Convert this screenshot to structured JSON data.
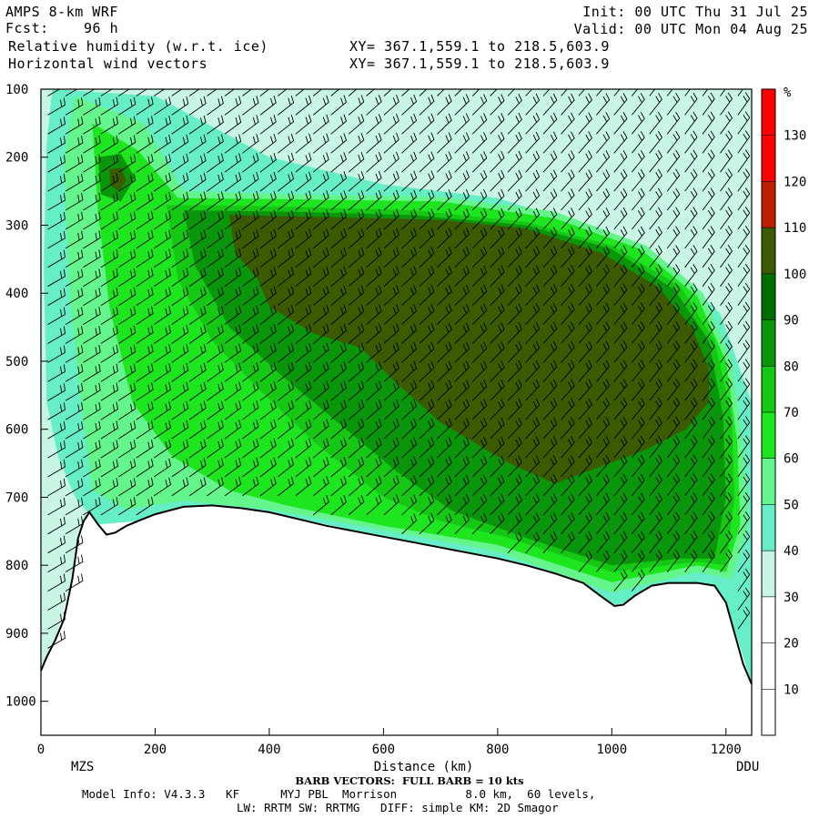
{
  "header": {
    "model": "AMPS 8-km WRF",
    "fcst_label": "Fcst:",
    "fcst_value": "96 h",
    "field": "Relative humidity (w.r.t. ice)",
    "vectors": "Horizontal wind vectors",
    "init": "Init: 00 UTC Thu 31 Jul 25",
    "valid": "Valid: 00 UTC Mon 04 Aug 25",
    "xy1": "XY= 367.1,559.1 to 218.5,603.9",
    "xy2": "XY= 367.1,559.1 to 218.5,603.9"
  },
  "footer": {
    "barb_note": "BARB VECTORS:  FULL BARB = 10 kts",
    "model_info": "Model Info: V4.3.3   KF      MYJ PBL  Morrison          8.0 km,  60 levels,",
    "model_info2": "LW: RRTM SW: RRTMG   DIFF: simple KM: 2D Smagor",
    "start_station": "MZS",
    "end_station": "DDU"
  },
  "chart_data": {
    "type": "heatmap",
    "xlabel": "Distance (km)",
    "ylabel": "",
    "x_ticks": [
      0,
      200,
      400,
      600,
      800,
      1000,
      1200
    ],
    "y_ticks": [
      100,
      200,
      300,
      400,
      500,
      600,
      700,
      800,
      900,
      1000
    ],
    "xlim": [
      0,
      1245
    ],
    "ylim": [
      1050,
      100
    ],
    "colorbar": {
      "unit": "%",
      "levels": [
        10,
        20,
        30,
        40,
        50,
        60,
        70,
        80,
        90,
        100,
        110,
        120,
        130
      ],
      "colors": [
        "#ffffff",
        "#ffffff",
        "#ffffff",
        "#c8f5e4",
        "#66eec6",
        "#64f58c",
        "#1ee61e",
        "#14c814",
        "#0a960a",
        "#006e00",
        "#3c5a00",
        "#be1e00",
        "#ff0000",
        "#ff0000"
      ]
    },
    "terrain_hPa": [
      [
        0,
        955
      ],
      [
        10,
        935
      ],
      [
        25,
        910
      ],
      [
        40,
        880
      ],
      [
        55,
        820
      ],
      [
        65,
        760
      ],
      [
        75,
        735
      ],
      [
        85,
        722
      ],
      [
        100,
        740
      ],
      [
        115,
        755
      ],
      [
        130,
        752
      ],
      [
        150,
        742
      ],
      [
        170,
        735
      ],
      [
        200,
        725
      ],
      [
        250,
        714
      ],
      [
        300,
        712
      ],
      [
        350,
        716
      ],
      [
        400,
        722
      ],
      [
        450,
        732
      ],
      [
        500,
        742
      ],
      [
        550,
        750
      ],
      [
        600,
        758
      ],
      [
        650,
        766
      ],
      [
        700,
        774
      ],
      [
        750,
        782
      ],
      [
        800,
        790
      ],
      [
        850,
        800
      ],
      [
        900,
        812
      ],
      [
        950,
        826
      ],
      [
        980,
        845
      ],
      [
        1005,
        860
      ],
      [
        1020,
        858
      ],
      [
        1040,
        845
      ],
      [
        1070,
        830
      ],
      [
        1100,
        826
      ],
      [
        1150,
        826
      ],
      [
        1180,
        830
      ],
      [
        1200,
        855
      ],
      [
        1215,
        900
      ],
      [
        1230,
        945
      ],
      [
        1245,
        975
      ]
    ],
    "rh_regions": [
      {
        "level": "30-40",
        "poly": [
          [
            0,
            100
          ],
          [
            1245,
            100
          ],
          [
            1245,
            975
          ],
          [
            1200,
            855
          ],
          [
            1150,
            826
          ],
          [
            1000,
            860
          ],
          [
            800,
            790
          ],
          [
            600,
            758
          ],
          [
            400,
            722
          ],
          [
            300,
            712
          ],
          [
            170,
            735
          ],
          [
            100,
            740
          ],
          [
            75,
            735
          ],
          [
            55,
            820
          ],
          [
            25,
            910
          ],
          [
            0,
            955
          ]
        ]
      },
      {
        "level": "40-50",
        "poly": [
          [
            20,
            100
          ],
          [
            200,
            110
          ],
          [
            400,
            200
          ],
          [
            600,
            240
          ],
          [
            800,
            260
          ],
          [
            950,
            300
          ],
          [
            1100,
            360
          ],
          [
            1190,
            430
          ],
          [
            1245,
            560
          ],
          [
            1245,
            975
          ],
          [
            1200,
            855
          ],
          [
            1150,
            826
          ],
          [
            1000,
            860
          ],
          [
            800,
            790
          ],
          [
            600,
            758
          ],
          [
            400,
            722
          ],
          [
            300,
            712
          ],
          [
            170,
            735
          ],
          [
            100,
            740
          ],
          [
            60,
            700
          ],
          [
            30,
            640
          ],
          [
            10,
            560
          ],
          [
            5,
            360
          ],
          [
            10,
            180
          ]
        ]
      },
      {
        "level": "60-70",
        "poly": [
          [
            60,
            110
          ],
          [
            180,
            150
          ],
          [
            250,
            250
          ],
          [
            450,
            255
          ],
          [
            700,
            258
          ],
          [
            900,
            280
          ],
          [
            1060,
            330
          ],
          [
            1160,
            400
          ],
          [
            1210,
            500
          ],
          [
            1230,
            620
          ],
          [
            1240,
            740
          ],
          [
            1210,
            820
          ],
          [
            1150,
            810
          ],
          [
            1000,
            840
          ],
          [
            800,
            780
          ],
          [
            600,
            748
          ],
          [
            400,
            718
          ],
          [
            250,
            705
          ],
          [
            150,
            718
          ],
          [
            90,
            690
          ],
          [
            70,
            560
          ],
          [
            50,
            400
          ],
          [
            40,
            200
          ]
        ]
      },
      {
        "level": "70-80",
        "poly": [
          [
            90,
            150
          ],
          [
            170,
            190
          ],
          [
            240,
            260
          ],
          [
            450,
            262
          ],
          [
            700,
            265
          ],
          [
            900,
            290
          ],
          [
            1050,
            335
          ],
          [
            1150,
            405
          ],
          [
            1200,
            500
          ],
          [
            1220,
            620
          ],
          [
            1225,
            740
          ],
          [
            1200,
            810
          ],
          [
            1150,
            800
          ],
          [
            1000,
            825
          ],
          [
            800,
            770
          ],
          [
            600,
            742
          ],
          [
            430,
            712
          ],
          [
            330,
            690
          ],
          [
            230,
            640
          ],
          [
            160,
            560
          ],
          [
            120,
            420
          ],
          [
            100,
            280
          ]
        ]
      },
      {
        "level": "80-90",
        "poly": [
          [
            220,
            270
          ],
          [
            400,
            272
          ],
          [
            650,
            278
          ],
          [
            850,
            295
          ],
          [
            1000,
            330
          ],
          [
            1120,
            390
          ],
          [
            1180,
            470
          ],
          [
            1210,
            580
          ],
          [
            1215,
            700
          ],
          [
            1200,
            800
          ],
          [
            1150,
            795
          ],
          [
            1000,
            810
          ],
          [
            820,
            760
          ],
          [
            700,
            735
          ],
          [
            600,
            700
          ],
          [
            480,
            620
          ],
          [
            380,
            540
          ],
          [
            300,
            470
          ],
          [
            240,
            380
          ]
        ]
      },
      {
        "level": "90-100",
        "poly": [
          [
            250,
            278
          ],
          [
            430,
            280
          ],
          [
            650,
            285
          ],
          [
            850,
            300
          ],
          [
            1000,
            335
          ],
          [
            1110,
            395
          ],
          [
            1170,
            470
          ],
          [
            1195,
            580
          ],
          [
            1200,
            700
          ],
          [
            1180,
            790
          ],
          [
            1120,
            790
          ],
          [
            1000,
            800
          ],
          [
            850,
            760
          ],
          [
            720,
            720
          ],
          [
            620,
            660
          ],
          [
            520,
            590
          ],
          [
            420,
            520
          ],
          [
            330,
            450
          ],
          [
            270,
            360
          ]
        ]
      },
      {
        "level": "100-110",
        "poly": [
          [
            330,
            285
          ],
          [
            500,
            288
          ],
          [
            700,
            292
          ],
          [
            850,
            305
          ],
          [
            980,
            340
          ],
          [
            1080,
            390
          ],
          [
            1140,
            450
          ],
          [
            1170,
            510
          ],
          [
            1170,
            560
          ],
          [
            1130,
            600
          ],
          [
            1060,
            630
          ],
          [
            980,
            655
          ],
          [
            900,
            680
          ],
          [
            820,
            650
          ],
          [
            760,
            620
          ],
          [
            700,
            590
          ],
          [
            620,
            530
          ],
          [
            560,
            480
          ],
          [
            480,
            460
          ],
          [
            400,
            420
          ],
          [
            380,
            380
          ],
          [
            340,
            340
          ]
        ]
      },
      {
        "level": "90-100",
        "poly": [
          [
            100,
            200
          ],
          [
            140,
            195
          ],
          [
            165,
            230
          ],
          [
            140,
            265
          ],
          [
            105,
            255
          ]
        ]
      },
      {
        "level": "100-110",
        "poly": [
          [
            120,
            218
          ],
          [
            140,
            215
          ],
          [
            150,
            235
          ],
          [
            135,
            250
          ],
          [
            122,
            240
          ]
        ]
      }
    ]
  }
}
